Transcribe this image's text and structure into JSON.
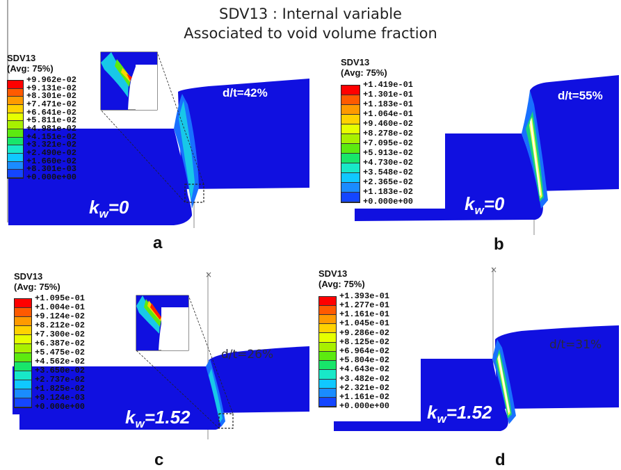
{
  "figure": {
    "title_line1": "SDV13 : Internal variable",
    "title_line2": "Associated to void volume fraction"
  },
  "colors": {
    "mesh_blue": "#1010e0",
    "scale": [
      "#ff0000",
      "#ff5a00",
      "#ff9a00",
      "#ffd200",
      "#e6ff00",
      "#a8f000",
      "#5cea10",
      "#18e66a",
      "#18e8c8",
      "#10c8ff",
      "#1a8cff",
      "#1446ff",
      "#0a0acc"
    ]
  },
  "panels": [
    {
      "id": "a",
      "legend": {
        "title": "SDV13",
        "subtitle": "(Avg: 75%)",
        "values": [
          "+9.962e-02",
          "+9.131e-02",
          "+8.301e-02",
          "+7.471e-02",
          "+6.641e-02",
          "+5.811e-02",
          "+4.981e-02",
          "+4.151e-02",
          "+3.321e-02",
          "+2.490e-02",
          "+1.660e-02",
          "+8.301e-03",
          "+0.000e+00"
        ]
      },
      "kw_symbol": "k",
      "kw_sub": "w",
      "kw_value": "=0",
      "dt_label": "d/t=42%",
      "label": "a"
    },
    {
      "id": "b",
      "legend": {
        "title": "SDV13",
        "subtitle": "(Avg: 75%)",
        "values": [
          "+1.419e-01",
          "+1.301e-01",
          "+1.183e-01",
          "+1.064e-01",
          "+9.460e-02",
          "+8.278e-02",
          "+7.095e-02",
          "+5.913e-02",
          "+4.730e-02",
          "+3.548e-02",
          "+2.365e-02",
          "+1.183e-02",
          "+0.000e+00"
        ]
      },
      "kw_symbol": "k",
      "kw_sub": "w",
      "kw_value": "=0",
      "dt_label": "d/t=55%",
      "label": "b"
    },
    {
      "id": "c",
      "legend": {
        "title": "SDV13",
        "subtitle": "(Avg: 75%)",
        "values": [
          "+1.095e-01",
          "+1.004e-01",
          "+9.124e-02",
          "+8.212e-02",
          "+7.300e-02",
          "+6.387e-02",
          "+5.475e-02",
          "+4.562e-02",
          "+3.650e-02",
          "+2.737e-02",
          "+1.825e-02",
          "+9.124e-03",
          "+0.000e+00"
        ]
      },
      "kw_symbol": "k",
      "kw_sub": "w",
      "kw_value": "=1.52",
      "dt_label": "d/t=26%",
      "label": "c"
    },
    {
      "id": "d",
      "legend": {
        "title": "SDV13",
        "subtitle": "(Avg: 75%)",
        "values": [
          "+1.393e-01",
          "+1.277e-01",
          "+1.161e-01",
          "+1.045e-01",
          "+9.286e-02",
          "+8.125e-02",
          "+6.964e-02",
          "+5.804e-02",
          "+4.643e-02",
          "+3.482e-02",
          "+2.321e-02",
          "+1.161e-02",
          "+0.000e+00"
        ]
      },
      "kw_symbol": "k",
      "kw_sub": "w",
      "kw_value": "=1.52",
      "dt_label": "d/t=31%",
      "label": "d"
    }
  ]
}
